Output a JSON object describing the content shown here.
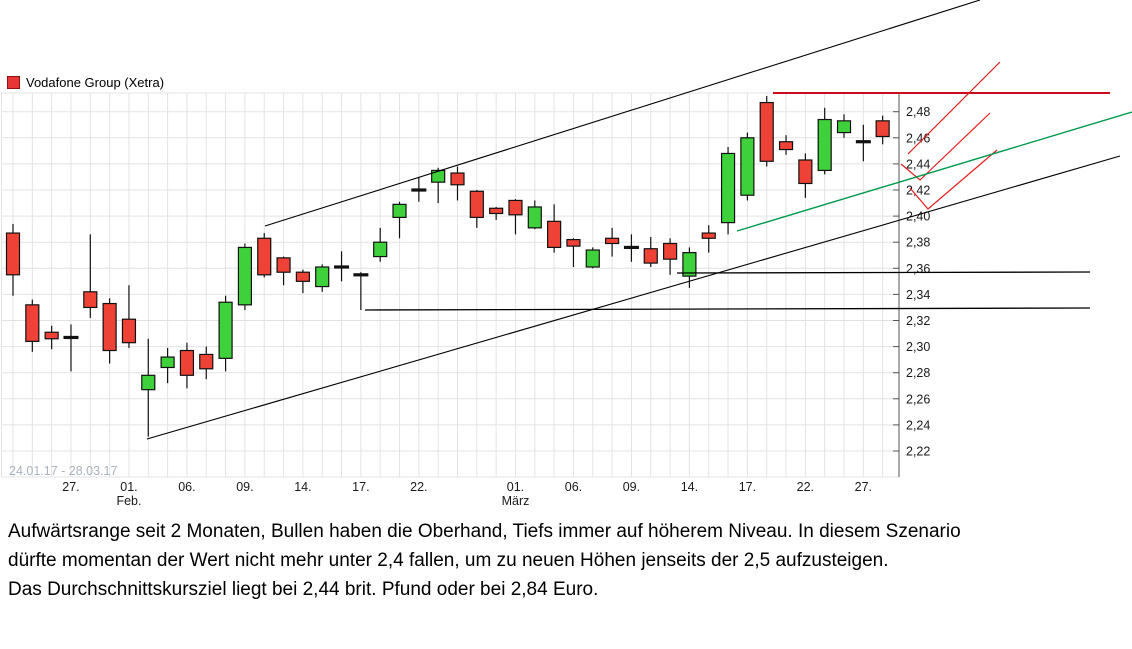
{
  "legend": {
    "label": "Vodafone Group (Xetra)",
    "swatch_color": "#e83535"
  },
  "commentary": {
    "lines": [
      "Aufwärtsrange seit 2 Monaten, Bullen haben die Oberhand, Tiefs immer auf höherem Niveau. In diesem Szenario",
      "dürfte momentan der Wert nicht mehr unter 2,4 fallen, um zu neuen Höhen jenseits der 2,5 aufzusteigen.",
      "Das Durchschnittskursziel liegt bei 2,44 brit. Pfund oder bei 2,84 Euro."
    ]
  },
  "chart_data": {
    "type": "candlestick",
    "title": "Vodafone Group (Xetra)",
    "period_label": "24.01.17 - 28.03.17",
    "ylim": [
      2.2,
      2.495
    ],
    "grid": true,
    "y_axis": {
      "ticks": [
        {
          "label": "2,22",
          "v": 2.22
        },
        {
          "label": "2,24",
          "v": 2.24
        },
        {
          "label": "2,26",
          "v": 2.26
        },
        {
          "label": "2,28",
          "v": 2.28
        },
        {
          "label": "2,30",
          "v": 2.3
        },
        {
          "label": "2,32",
          "v": 2.32
        },
        {
          "label": "2,34",
          "v": 2.34
        },
        {
          "label": "2,36",
          "v": 2.36
        },
        {
          "label": "2,38",
          "v": 2.38
        },
        {
          "label": "2,40",
          "v": 2.4
        },
        {
          "label": "2,42",
          "v": 2.42
        },
        {
          "label": "2,44",
          "v": 2.44
        },
        {
          "label": "2,46",
          "v": 2.46
        },
        {
          "label": "2,48",
          "v": 2.48
        }
      ]
    },
    "x_axis": {
      "labels": [
        {
          "t": "27.",
          "i": 3
        },
        {
          "t": "01.",
          "sub": "Feb.",
          "i": 6
        },
        {
          "t": "06.",
          "i": 9
        },
        {
          "t": "09.",
          "i": 12
        },
        {
          "t": "14.",
          "i": 15
        },
        {
          "t": "17.",
          "i": 18
        },
        {
          "t": "22.",
          "i": 21
        },
        {
          "t": "01.",
          "sub": "März",
          "i": 26
        },
        {
          "t": "06.",
          "i": 29
        },
        {
          "t": "09.",
          "i": 32
        },
        {
          "t": "14.",
          "i": 35
        },
        {
          "t": "17.",
          "i": 38
        },
        {
          "t": "22.",
          "i": 41
        },
        {
          "t": "27.",
          "i": 44
        }
      ]
    },
    "candles": [
      [
        "24.01.17",
        2.387,
        2.394,
        2.339,
        2.355,
        "down"
      ],
      [
        "25.01.17",
        2.332,
        2.336,
        2.296,
        2.304,
        "down"
      ],
      [
        "26.01.17",
        2.311,
        2.316,
        2.298,
        2.306,
        "down"
      ],
      [
        "27.01.17",
        2.307,
        2.317,
        2.281,
        2.307,
        "doji"
      ],
      [
        "30.01.17",
        2.342,
        2.386,
        2.322,
        2.33,
        "down"
      ],
      [
        "31.01.17",
        2.333,
        2.337,
        2.287,
        2.297,
        "down"
      ],
      [
        "01.02.17",
        2.321,
        2.347,
        2.299,
        2.303,
        "down"
      ],
      [
        "02.02.17",
        2.267,
        2.306,
        2.231,
        2.278,
        "up"
      ],
      [
        "03.02.17",
        2.284,
        2.299,
        2.272,
        2.292,
        "up"
      ],
      [
        "06.02.17",
        2.297,
        2.303,
        2.268,
        2.278,
        "down"
      ],
      [
        "07.02.17",
        2.294,
        2.3,
        2.275,
        2.283,
        "down"
      ],
      [
        "08.02.17",
        2.291,
        2.339,
        2.281,
        2.334,
        "up"
      ],
      [
        "09.02.17",
        2.332,
        2.379,
        2.328,
        2.376,
        "up"
      ],
      [
        "10.02.17",
        2.383,
        2.387,
        2.353,
        2.355,
        "down"
      ],
      [
        "13.02.17",
        2.368,
        2.369,
        2.347,
        2.357,
        "down"
      ],
      [
        "14.02.17",
        2.357,
        2.359,
        2.341,
        2.35,
        "down"
      ],
      [
        "15.02.17",
        2.346,
        2.363,
        2.342,
        2.361,
        "up"
      ],
      [
        "16.02.17",
        2.361,
        2.373,
        2.35,
        2.361,
        "doji"
      ],
      [
        "17.02.17",
        2.355,
        2.357,
        2.328,
        2.355,
        "doji"
      ],
      [
        "20.02.17",
        2.369,
        2.391,
        2.365,
        2.38,
        "up"
      ],
      [
        "21.02.17",
        2.399,
        2.411,
        2.383,
        2.409,
        "up"
      ],
      [
        "22.02.17",
        2.42,
        2.43,
        2.411,
        2.42,
        "doji"
      ],
      [
        "23.02.17",
        2.426,
        2.437,
        2.41,
        2.435,
        "up"
      ],
      [
        "24.02.17",
        2.433,
        2.438,
        2.412,
        2.424,
        "down"
      ],
      [
        "27.02.17",
        2.419,
        2.42,
        2.391,
        2.399,
        "down"
      ],
      [
        "28.02.17",
        2.406,
        2.407,
        2.397,
        2.402,
        "down"
      ],
      [
        "01.03.17",
        2.412,
        2.413,
        2.386,
        2.401,
        "down"
      ],
      [
        "02.03.17",
        2.391,
        2.412,
        2.39,
        2.407,
        "up"
      ],
      [
        "03.03.17",
        2.396,
        2.409,
        2.372,
        2.376,
        "down"
      ],
      [
        "06.03.17",
        2.382,
        2.383,
        2.361,
        2.377,
        "down"
      ],
      [
        "07.03.17",
        2.361,
        2.376,
        2.36,
        2.374,
        "up"
      ],
      [
        "08.03.17",
        2.383,
        2.391,
        2.369,
        2.379,
        "down"
      ],
      [
        "09.03.17",
        2.376,
        2.386,
        2.365,
        2.376,
        "doji"
      ],
      [
        "10.03.17",
        2.375,
        2.384,
        2.361,
        2.364,
        "down"
      ],
      [
        "13.03.17",
        2.379,
        2.383,
        2.355,
        2.367,
        "down"
      ],
      [
        "14.03.17",
        2.354,
        2.376,
        2.345,
        2.372,
        "up"
      ],
      [
        "15.03.17",
        2.387,
        2.393,
        2.372,
        2.383,
        "down"
      ],
      [
        "16.03.17",
        2.395,
        2.453,
        2.386,
        2.448,
        "up"
      ],
      [
        "17.03.17",
        2.416,
        2.464,
        2.412,
        2.46,
        "up"
      ],
      [
        "20.03.17",
        2.487,
        2.492,
        2.438,
        2.442,
        "down"
      ],
      [
        "21.03.17",
        2.457,
        2.462,
        2.447,
        2.451,
        "down"
      ],
      [
        "22.03.17",
        2.443,
        2.448,
        2.414,
        2.425,
        "down"
      ],
      [
        "23.03.17",
        2.435,
        2.483,
        2.432,
        2.474,
        "up"
      ],
      [
        "24.03.17",
        2.464,
        2.478,
        2.46,
        2.473,
        "up"
      ],
      [
        "27.03.17",
        2.457,
        2.47,
        2.442,
        2.457,
        "doji"
      ],
      [
        "28.03.17",
        2.473,
        2.477,
        2.455,
        2.461,
        "down"
      ]
    ],
    "annotations": [
      {
        "name": "upper-channel-line",
        "color": "black",
        "w": 1.1,
        "pts": [
          [
            265,
            226
          ],
          [
            980,
            0
          ]
        ]
      },
      {
        "name": "lower-channel-line",
        "color": "black",
        "w": 1.1,
        "pts": [
          [
            147,
            439
          ],
          [
            1120,
            156
          ]
        ]
      },
      {
        "name": "support-line-2_36",
        "color": "black",
        "w": 1.3,
        "pts": [
          [
            677,
            273
          ],
          [
            1090,
            272
          ]
        ]
      },
      {
        "name": "support-line-2_33",
        "color": "black",
        "w": 1.3,
        "pts": [
          [
            365,
            310
          ],
          [
            1090,
            308
          ]
        ]
      },
      {
        "name": "resistance-line-2_49",
        "color": "red_thick",
        "w": 2,
        "pts": [
          [
            773,
            93
          ],
          [
            1110,
            93
          ]
        ]
      },
      {
        "name": "projection-arrow-1",
        "color": "red_thin",
        "w": 1.2,
        "pts": [
          [
            908,
            154
          ],
          [
            1000,
            62
          ]
        ]
      },
      {
        "name": "projection-check-1",
        "color": "red_thin",
        "w": 1.2,
        "pts": [
          [
            901,
            164
          ],
          [
            920,
            180
          ],
          [
            990,
            113
          ]
        ]
      },
      {
        "name": "projection-check-2",
        "color": "red_thin",
        "w": 1.2,
        "pts": [
          [
            910,
            188
          ],
          [
            928,
            209
          ],
          [
            997,
            150
          ]
        ]
      },
      {
        "name": "green-trend-line",
        "color": "green",
        "w": 1.4,
        "pts": [
          [
            737,
            231
          ],
          [
            1132,
            112
          ]
        ]
      }
    ],
    "colors": {
      "up": "#3ed13b",
      "down": "#ee4236",
      "doji": "#111111",
      "candle_border": "#111111",
      "grid": "#e3e3e3",
      "axis": "#555555",
      "tick_text": "#1a1a1a",
      "period_text": "#aab2bc",
      "black": "#000000",
      "red_thin": "#e61e1e",
      "red_thick": "#cc0a1a",
      "green": "#009a4d"
    }
  }
}
